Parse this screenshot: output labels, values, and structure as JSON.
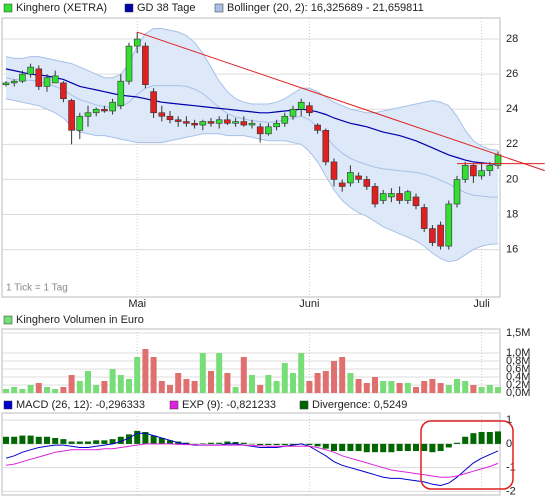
{
  "chart_data": [
    {
      "type": "candlestick",
      "annotation": "1 Tick = 1 Tag",
      "categories": [
        null,
        null,
        null,
        null,
        null,
        null,
        null,
        null,
        null,
        null,
        null,
        null,
        null,
        null,
        null,
        null,
        "Mai",
        null,
        null,
        null,
        null,
        null,
        null,
        null,
        null,
        null,
        null,
        null,
        null,
        null,
        null,
        null,
        null,
        null,
        null,
        null,
        null,
        "Juni",
        null,
        null,
        null,
        null,
        null,
        null,
        null,
        null,
        null,
        null,
        null,
        null,
        null,
        null,
        null,
        null,
        null,
        null,
        null,
        null,
        "Juli",
        null,
        null
      ],
      "series": [
        {
          "name": "Kinghero (XETRA)",
          "color": "#33dd33",
          "down_color": "#e02020",
          "open": [
            25.4,
            25.5,
            25.6,
            26.0,
            26.3,
            25.3,
            25.5,
            25.5,
            24.5,
            22.8,
            23.6,
            23.8,
            24.0,
            23.9,
            24.2,
            25.6,
            27.6,
            27.6,
            25.0,
            23.8,
            23.6,
            23.4,
            23.3,
            23.2,
            23.1,
            23.3,
            23.2,
            23.4,
            23.2,
            23.3,
            23.1,
            23.0,
            22.6,
            23.0,
            23.2,
            23.6,
            24.0,
            24.2,
            23.1,
            22.8,
            21.0,
            19.8,
            19.8,
            20.2,
            20.0,
            19.6,
            18.8,
            19.0,
            19.2,
            18.8,
            19.0,
            18.4,
            17.2,
            17.4,
            16.2,
            18.6,
            20.0,
            20.8,
            20.2,
            20.5,
            20.8
          ],
          "high": [
            25.6,
            25.7,
            26.2,
            26.6,
            26.5,
            26.0,
            26.2,
            25.6,
            24.6,
            23.8,
            24.2,
            24.1,
            24.2,
            24.6,
            26.0,
            27.8,
            28.4,
            27.8,
            25.2,
            24.2,
            23.9,
            23.6,
            23.6,
            23.4,
            23.4,
            23.5,
            23.6,
            23.7,
            23.5,
            23.6,
            23.4,
            23.2,
            23.2,
            23.4,
            23.8,
            24.2,
            24.6,
            24.4,
            23.2,
            22.9,
            21.2,
            20.0,
            20.8,
            20.4,
            20.2,
            19.8,
            19.4,
            19.5,
            19.6,
            19.4,
            19.2,
            18.6,
            17.4,
            17.6,
            18.8,
            20.2,
            21.0,
            20.9,
            21.0,
            21.0,
            21.6
          ],
          "low": [
            25.3,
            25.3,
            25.5,
            25.8,
            25.1,
            25.0,
            25.5,
            24.4,
            22.0,
            22.3,
            23.0,
            23.6,
            23.8,
            23.7,
            24.0,
            25.4,
            27.2,
            25.2,
            23.5,
            23.3,
            23.2,
            23.0,
            23.0,
            22.9,
            22.8,
            23.0,
            22.9,
            23.1,
            23.0,
            23.0,
            22.9,
            22.1,
            22.5,
            22.8,
            23.0,
            23.4,
            23.6,
            23.6,
            22.6,
            20.8,
            19.6,
            19.3,
            19.6,
            19.8,
            19.4,
            18.4,
            18.6,
            18.7,
            18.6,
            18.6,
            18.3,
            17.0,
            16.2,
            16.0,
            16.0,
            18.4,
            19.8,
            19.8,
            20.0,
            20.2,
            20.6
          ],
          "close": [
            25.5,
            25.6,
            26.0,
            26.4,
            25.3,
            25.8,
            25.9,
            24.6,
            22.8,
            23.6,
            23.8,
            24.0,
            23.9,
            24.4,
            25.6,
            27.6,
            28.0,
            25.4,
            23.8,
            23.6,
            23.4,
            23.3,
            23.2,
            23.1,
            23.3,
            23.2,
            23.4,
            23.2,
            23.3,
            23.1,
            23.2,
            22.6,
            23.0,
            23.2,
            23.6,
            24.0,
            24.4,
            23.8,
            22.8,
            21.0,
            20.0,
            19.6,
            20.4,
            20.0,
            19.6,
            18.6,
            19.2,
            19.2,
            18.8,
            19.3,
            18.5,
            17.2,
            16.4,
            16.2,
            18.6,
            20.0,
            20.8,
            20.2,
            20.5,
            20.8,
            21.4
          ]
        }
      ],
      "ma": {
        "name": "GD 38 Tage",
        "color": "#0000aa",
        "values": [
          26.3,
          26.2,
          26.1,
          26.0,
          25.95,
          25.9,
          25.8,
          25.7,
          25.5,
          25.3,
          25.2,
          25.1,
          25.0,
          24.9,
          24.8,
          24.75,
          24.7,
          24.6,
          24.5,
          24.4,
          24.35,
          24.3,
          24.25,
          24.2,
          24.15,
          24.1,
          24.05,
          24.0,
          23.95,
          23.9,
          23.85,
          23.8,
          23.8,
          23.85,
          23.9,
          23.95,
          24.0,
          23.95,
          23.85,
          23.7,
          23.5,
          23.35,
          23.2,
          23.1,
          23.0,
          22.85,
          22.7,
          22.6,
          22.5,
          22.35,
          22.2,
          22.0,
          21.8,
          21.6,
          21.4,
          21.25,
          21.1,
          21.0,
          20.95,
          20.9,
          20.85
        ]
      },
      "bollinger": {
        "name": "Bollinger (20, 2): 16,325689 - 21,659811",
        "color": "#a8c0e8",
        "fill": "#dde9f8",
        "upper": [
          27.0,
          26.9,
          26.9,
          27.0,
          27.0,
          26.9,
          26.8,
          26.7,
          26.6,
          26.4,
          26.2,
          26.0,
          25.8,
          25.8,
          26.0,
          26.6,
          27.6,
          28.3,
          28.6,
          28.6,
          28.5,
          28.4,
          28.2,
          27.8,
          27.2,
          26.4,
          25.6,
          25.0,
          24.6,
          24.4,
          24.3,
          24.3,
          24.3,
          24.4,
          24.6,
          24.9,
          25.2,
          25.2,
          25.0,
          24.7,
          24.4,
          24.2,
          24.0,
          23.9,
          23.8,
          23.8,
          23.9,
          24.0,
          24.1,
          24.2,
          24.3,
          24.4,
          24.5,
          24.4,
          24.2,
          23.6,
          22.8,
          22.2,
          21.9,
          21.7,
          21.66
        ],
        "middle": [
          25.8,
          25.7,
          25.65,
          25.65,
          25.6,
          25.45,
          25.3,
          25.1,
          24.8,
          24.55,
          24.4,
          24.25,
          24.15,
          24.1,
          24.15,
          24.4,
          24.85,
          25.2,
          25.35,
          25.35,
          25.35,
          25.35,
          25.3,
          25.15,
          24.9,
          24.5,
          24.1,
          23.75,
          23.55,
          23.45,
          23.35,
          23.3,
          23.25,
          23.3,
          23.4,
          23.5,
          23.6,
          23.4,
          23.0,
          22.45,
          21.9,
          21.5,
          21.2,
          21.0,
          20.85,
          20.7,
          20.6,
          20.55,
          20.5,
          20.45,
          20.4,
          20.3,
          20.15,
          19.95,
          19.75,
          19.5,
          19.25,
          19.1,
          19.05,
          19.0,
          18.99
        ],
        "lower": [
          24.6,
          24.5,
          24.4,
          24.3,
          24.2,
          24.0,
          23.8,
          23.5,
          23.0,
          22.7,
          22.6,
          22.5,
          22.5,
          22.4,
          22.3,
          22.2,
          22.1,
          22.1,
          22.1,
          22.1,
          22.2,
          22.3,
          22.4,
          22.5,
          22.6,
          22.6,
          22.6,
          22.5,
          22.5,
          22.5,
          22.4,
          22.3,
          22.2,
          22.2,
          22.2,
          22.1,
          22.0,
          21.6,
          21.0,
          20.2,
          19.4,
          18.8,
          18.4,
          18.1,
          17.9,
          17.6,
          17.3,
          17.1,
          16.9,
          16.7,
          16.5,
          16.2,
          15.8,
          15.5,
          15.3,
          15.4,
          15.7,
          16.0,
          16.2,
          16.3,
          16.33
        ]
      },
      "lines": [
        {
          "color": "#e02020",
          "points": [
            [
              16,
              28.4
            ],
            [
              65.7,
              20.5
            ]
          ]
        },
        {
          "color": "#e02020",
          "points": [
            [
              55,
              20.9
            ],
            [
              65.7,
              20.9
            ]
          ]
        }
      ],
      "ylim": [
        13.3,
        29.2
      ],
      "yticks": [
        16,
        18,
        20,
        22,
        24,
        26,
        28
      ],
      "grid": true
    },
    {
      "type": "bar",
      "series": [
        {
          "name": "Kinghero Volumen in Euro",
          "color": "#77dd77",
          "down_color": "#e07070",
          "values": [
            0.1,
            0.15,
            0.1,
            0.2,
            0.25,
            0.15,
            0.1,
            0.15,
            0.45,
            0.3,
            0.55,
            0.2,
            0.3,
            0.6,
            0.45,
            0.35,
            0.9,
            1.1,
            0.9,
            0.3,
            0.2,
            0.5,
            0.35,
            0.3,
            1.0,
            0.55,
            1.0,
            0.5,
            0.15,
            0.9,
            0.45,
            0.2,
            0.45,
            0.3,
            0.75,
            0.5,
            1.0,
            0.3,
            0.5,
            0.55,
            0.8,
            0.9,
            0.5,
            0.35,
            0.25,
            0.4,
            0.3,
            0.3,
            0.25,
            0.25,
            0.15,
            0.3,
            0.35,
            0.25,
            0.2,
            0.35,
            0.3,
            0.2,
            0.15,
            0.2,
            0.15
          ]
        }
      ],
      "ylim": [
        0,
        1.6
      ],
      "yticks": [
        {
          "value": 0,
          "label": "0,0M"
        },
        {
          "value": 0.2,
          "label": "0,2M"
        },
        {
          "value": 0.4,
          "label": "0,4M"
        },
        {
          "value": 0.6,
          "label": "0,6M"
        },
        {
          "value": 0.8,
          "label": "0,8M"
        },
        {
          "value": 1.0,
          "label": "1,0M"
        },
        {
          "value": 1.5,
          "label": "1,5M"
        }
      ],
      "grid": true
    },
    {
      "type": "line",
      "series": [
        {
          "name": "MACD (26, 12): -0,296333",
          "color": "#0000cc",
          "style": "line",
          "values": [
            -0.6,
            -0.5,
            -0.35,
            -0.25,
            -0.15,
            -0.1,
            -0.05,
            -0.05,
            -0.1,
            -0.15,
            -0.15,
            -0.1,
            -0.05,
            0.0,
            0.1,
            0.25,
            0.45,
            0.45,
            0.35,
            0.25,
            0.15,
            0.05,
            0.0,
            -0.05,
            -0.05,
            -0.05,
            -0.05,
            0.0,
            0.0,
            -0.05,
            -0.1,
            -0.15,
            -0.15,
            -0.15,
            -0.1,
            -0.05,
            0.0,
            -0.1,
            -0.3,
            -0.5,
            -0.75,
            -0.9,
            -1.0,
            -1.1,
            -1.2,
            -1.3,
            -1.4,
            -1.45,
            -1.45,
            -1.5,
            -1.55,
            -1.6,
            -1.7,
            -1.75,
            -1.65,
            -1.4,
            -1.1,
            -0.8,
            -0.6,
            -0.45,
            -0.296333
          ]
        },
        {
          "name": "EXP (9): -0,821233",
          "color": "#dd22dd",
          "style": "line",
          "values": [
            -0.9,
            -0.85,
            -0.75,
            -0.65,
            -0.55,
            -0.45,
            -0.35,
            -0.3,
            -0.25,
            -0.25,
            -0.25,
            -0.25,
            -0.2,
            -0.2,
            -0.15,
            -0.1,
            -0.05,
            0.0,
            0.0,
            0.0,
            0.0,
            -0.02,
            -0.03,
            -0.03,
            -0.05,
            -0.05,
            -0.05,
            -0.05,
            -0.05,
            -0.05,
            -0.07,
            -0.08,
            -0.1,
            -0.1,
            -0.1,
            -0.1,
            -0.1,
            -0.1,
            -0.15,
            -0.25,
            -0.35,
            -0.5,
            -0.6,
            -0.7,
            -0.8,
            -0.9,
            -1.0,
            -1.1,
            -1.15,
            -1.2,
            -1.25,
            -1.3,
            -1.35,
            -1.4,
            -1.4,
            -1.35,
            -1.25,
            -1.15,
            -1.05,
            -0.95,
            -0.821233
          ]
        },
        {
          "name": "Divergence: 0,5249",
          "color": "#006600",
          "style": "bar",
          "values": [
            0.3,
            0.3,
            0.35,
            0.35,
            0.3,
            0.3,
            0.25,
            0.2,
            0.1,
            0.1,
            0.1,
            0.15,
            0.15,
            0.2,
            0.3,
            0.4,
            0.55,
            0.5,
            0.35,
            0.25,
            0.15,
            0.1,
            0.05,
            0.0,
            0.02,
            0.05,
            0.05,
            0.1,
            0.08,
            0.05,
            0.0,
            -0.05,
            -0.05,
            -0.05,
            -0.05,
            -0.05,
            0.0,
            -0.05,
            -0.1,
            -0.2,
            -0.3,
            -0.3,
            -0.3,
            -0.3,
            -0.35,
            -0.35,
            -0.35,
            -0.35,
            -0.3,
            -0.3,
            -0.3,
            -0.3,
            -0.35,
            -0.3,
            -0.15,
            0.05,
            0.3,
            0.45,
            0.5,
            0.5,
            0.5249
          ]
        }
      ],
      "ylim": [
        -2.15,
        1.3
      ],
      "yticks": [
        1,
        0,
        -1,
        -2
      ],
      "grid": true
    }
  ]
}
